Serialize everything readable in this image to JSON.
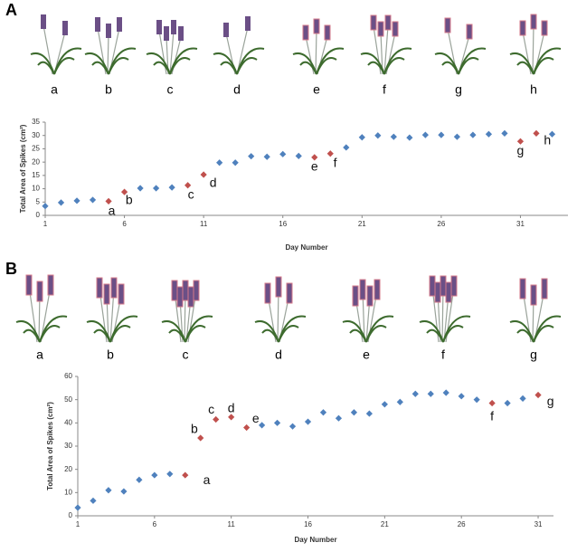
{
  "panels": [
    {
      "label": "A",
      "image_labels": [
        "a",
        "b",
        "c",
        "d",
        "e",
        "f",
        "g",
        "h"
      ]
    },
    {
      "label": "B",
      "image_labels": [
        "a",
        "b",
        "c",
        "d",
        "e",
        "f",
        "g"
      ]
    }
  ],
  "chart_data": [
    {
      "type": "scatter",
      "x_label": "Day Number",
      "y_label": "Total Area of Spikes (cm²)",
      "xlim": [
        1,
        34
      ],
      "xticks": [
        1,
        6,
        11,
        16,
        21,
        26,
        31
      ],
      "ylim": [
        0,
        35
      ],
      "yticks": [
        0,
        5,
        10,
        15,
        20,
        25,
        30,
        35
      ],
      "grid": false,
      "series": [
        {
          "color": "#4f81bd",
          "x": [
            1,
            2,
            3,
            4,
            7,
            8,
            9,
            12,
            13,
            14,
            15,
            16,
            17,
            20,
            21,
            22,
            23,
            24,
            25,
            26,
            27,
            28,
            29,
            30,
            33
          ],
          "values": [
            3.5,
            4.8,
            5.5,
            5.8,
            10.2,
            10.2,
            10.5,
            19.8,
            19.8,
            22.2,
            22,
            23,
            22.3,
            25.5,
            29.3,
            30,
            29.5,
            29.2,
            30.2,
            30.2,
            29.5,
            30.2,
            30.5,
            30.8,
            30.5
          ]
        },
        {
          "color": "#c0504d",
          "x": [
            5,
            6,
            10,
            11,
            18,
            19,
            31,
            32
          ],
          "values": [
            5.3,
            8.8,
            11.3,
            15.3,
            21.8,
            23.2,
            27.8,
            30.8
          ]
        }
      ],
      "annotations": [
        {
          "text": "a",
          "x": 5.2,
          "y": 1.5
        },
        {
          "text": "b",
          "x": 6.3,
          "y": 5.5
        },
        {
          "text": "c",
          "x": 10.2,
          "y": 7.5
        },
        {
          "text": "d",
          "x": 11.6,
          "y": 12
        },
        {
          "text": "e",
          "x": 18,
          "y": 18
        },
        {
          "text": "f",
          "x": 19.3,
          "y": 19.5
        },
        {
          "text": "g",
          "x": 31,
          "y": 24
        },
        {
          "text": "h",
          "x": 32.7,
          "y": 28
        }
      ]
    },
    {
      "type": "scatter",
      "x_label": "Day Number",
      "y_label": "Total Area of Spikes (cm²)",
      "xlim": [
        1,
        32
      ],
      "xticks": [
        1,
        6,
        11,
        16,
        21,
        26,
        31
      ],
      "ylim": [
        0,
        60
      ],
      "yticks": [
        0,
        10,
        20,
        30,
        40,
        50,
        60
      ],
      "grid": false,
      "series": [
        {
          "color": "#4f81bd",
          "x": [
            1,
            2,
            3,
            4,
            5,
            6,
            7,
            13,
            14,
            15,
            16,
            17,
            18,
            19,
            20,
            21,
            22,
            23,
            24,
            25,
            26,
            27,
            29,
            30
          ],
          "values": [
            3.5,
            6.5,
            11,
            10.5,
            15.5,
            17.5,
            18,
            39,
            40,
            38.5,
            40.5,
            44.5,
            42,
            44.5,
            44,
            48,
            49,
            52.5,
            52.5,
            53,
            51.5,
            50,
            48.5,
            50.5
          ]
        },
        {
          "color": "#c0504d",
          "x": [
            8,
            9,
            10,
            11,
            12,
            28,
            31
          ],
          "values": [
            17.5,
            33.5,
            41.5,
            42.5,
            38,
            48.5,
            52
          ]
        }
      ],
      "annotations": [
        {
          "text": "a",
          "x": 9.4,
          "y": 15
        },
        {
          "text": "b",
          "x": 8.6,
          "y": 37
        },
        {
          "text": "c",
          "x": 9.7,
          "y": 45.5
        },
        {
          "text": "d",
          "x": 11,
          "y": 46
        },
        {
          "text": "e",
          "x": 12.6,
          "y": 41.5
        },
        {
          "text": "f",
          "x": 28,
          "y": 42.5
        },
        {
          "text": "g",
          "x": 31.8,
          "y": 49
        }
      ]
    }
  ]
}
